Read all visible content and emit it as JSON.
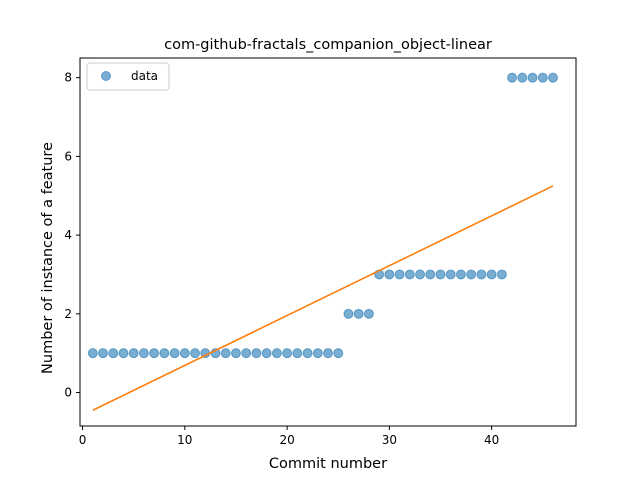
{
  "chart_data": {
    "type": "scatter",
    "title": "com-github-fractals_companion_object-linear",
    "xlabel": "Commit number",
    "ylabel": "Number of instance of a feature",
    "xlim": [
      -0.25,
      48.25
    ],
    "ylim": [
      -0.85,
      8.5
    ],
    "xticks": [
      0,
      10,
      20,
      30,
      40
    ],
    "yticks": [
      0,
      2,
      4,
      6,
      8
    ],
    "grid": false,
    "legend": {
      "placement": "top-left",
      "entries": [
        "data"
      ]
    },
    "series": [
      {
        "name": "data",
        "kind": "scatter",
        "color": "#1f77b4",
        "x": [
          1,
          2,
          3,
          4,
          5,
          6,
          7,
          8,
          9,
          10,
          11,
          12,
          13,
          14,
          15,
          16,
          17,
          18,
          19,
          20,
          21,
          22,
          23,
          24,
          25,
          26,
          27,
          28,
          29,
          30,
          31,
          32,
          33,
          34,
          35,
          36,
          37,
          38,
          39,
          40,
          41,
          42,
          43,
          44,
          45,
          46
        ],
        "y": [
          1,
          1,
          1,
          1,
          1,
          1,
          1,
          1,
          1,
          1,
          1,
          1,
          1,
          1,
          1,
          1,
          1,
          1,
          1,
          1,
          1,
          1,
          1,
          1,
          1,
          2,
          2,
          2,
          3,
          3,
          3,
          3,
          3,
          3,
          3,
          3,
          3,
          3,
          3,
          3,
          3,
          8,
          8,
          8,
          8,
          8
        ]
      },
      {
        "kind": "line",
        "color": "#ff7f0e",
        "x": [
          1,
          46
        ],
        "y": [
          -0.45,
          5.25
        ]
      }
    ]
  }
}
